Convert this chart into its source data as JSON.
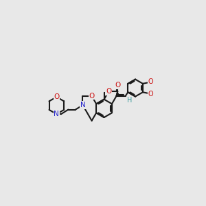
{
  "bg_color": "#e8e8e8",
  "bond_color": "#1a1a1a",
  "N_color": "#2222cc",
  "O_color": "#cc1111",
  "H_color": "#3a9a9a",
  "figsize": [
    3.0,
    3.0
  ],
  "dpi": 100,
  "xlim": [
    -4.5,
    5.0
  ],
  "ylim": [
    -2.2,
    2.5
  ]
}
